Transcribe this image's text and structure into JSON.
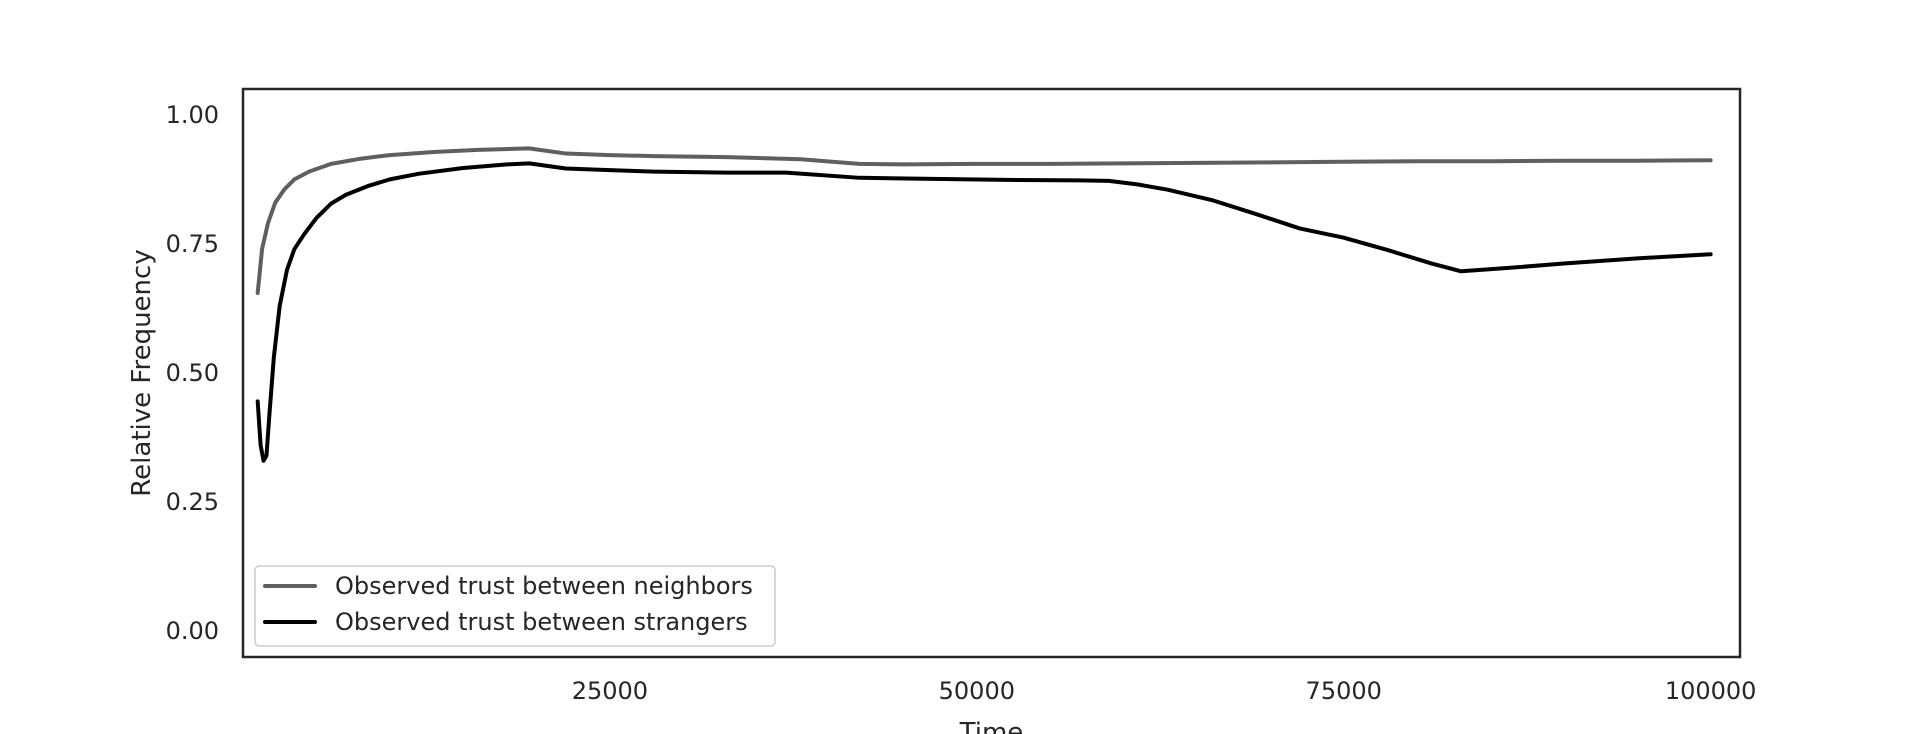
{
  "chart_data": {
    "type": "line",
    "title": "",
    "xlabel": "Time",
    "ylabel": "Relative Frequency",
    "xlim": [
      0,
      102000
    ],
    "ylim": [
      -0.05,
      1.05
    ],
    "xticks": [
      25000,
      50000,
      75000,
      100000
    ],
    "xtick_labels": [
      "25000",
      "50000",
      "75000",
      "100000"
    ],
    "yticks": [
      0.0,
      0.25,
      0.5,
      0.75,
      1.0
    ],
    "ytick_labels": [
      "0.00",
      "0.25",
      "0.50",
      "0.75",
      "1.00"
    ],
    "grid": false,
    "legend_position": "lower-left",
    "series": [
      {
        "name": "Observed trust between neighbors",
        "color": "#5f5f5f",
        "x": [
          1000,
          1300,
          1700,
          2200,
          2800,
          3500,
          4500,
          6000,
          8000,
          10000,
          13000,
          16000,
          19500,
          22000,
          25000,
          28000,
          33000,
          38000,
          42000,
          45000,
          50000,
          55000,
          60000,
          65000,
          70000,
          75000,
          80000,
          85000,
          90000,
          95000,
          100000
        ],
        "y": [
          0.655,
          0.74,
          0.79,
          0.83,
          0.855,
          0.875,
          0.89,
          0.905,
          0.915,
          0.922,
          0.928,
          0.932,
          0.935,
          0.925,
          0.922,
          0.92,
          0.918,
          0.914,
          0.905,
          0.904,
          0.905,
          0.905,
          0.906,
          0.907,
          0.908,
          0.909,
          0.91,
          0.91,
          0.911,
          0.911,
          0.912
        ]
      },
      {
        "name": "Observed trust between strangers",
        "color": "#000000",
        "x": [
          1000,
          1200,
          1400,
          1600,
          1800,
          2100,
          2500,
          3000,
          3500,
          4200,
          5000,
          6000,
          7000,
          8500,
          10000,
          12000,
          15000,
          18000,
          19500,
          22000,
          25000,
          28000,
          33000,
          37000,
          42000,
          47000,
          52000,
          57000,
          59000,
          61000,
          63000,
          66000,
          69000,
          72000,
          75000,
          78000,
          81000,
          83000,
          86000,
          90000,
          95000,
          100000
        ],
        "y": [
          0.445,
          0.36,
          0.33,
          0.34,
          0.42,
          0.53,
          0.63,
          0.7,
          0.74,
          0.77,
          0.8,
          0.828,
          0.845,
          0.862,
          0.875,
          0.886,
          0.897,
          0.904,
          0.906,
          0.896,
          0.893,
          0.89,
          0.888,
          0.888,
          0.878,
          0.876,
          0.874,
          0.873,
          0.872,
          0.865,
          0.855,
          0.835,
          0.808,
          0.78,
          0.762,
          0.738,
          0.712,
          0.697,
          0.703,
          0.712,
          0.722,
          0.73
        ]
      }
    ]
  }
}
